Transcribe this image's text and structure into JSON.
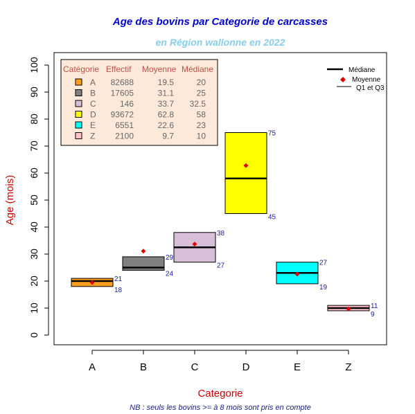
{
  "chart_data": {
    "type": "boxplot",
    "title": "Age des bovins par Categorie de carcasses",
    "subtitle": "en Région wallonne en 2022",
    "xlabel": "Categorie",
    "ylabel": "Age (mois)",
    "note": "NB : seuls les bovins >= à 8 mois sont pris en compte",
    "ylim": [
      0,
      100
    ],
    "y_ticks": [
      0,
      10,
      20,
      30,
      40,
      50,
      60,
      70,
      80,
      90,
      100
    ],
    "grid": false,
    "colors": {
      "title": "#0000cc",
      "subtitle": "#87ceeb",
      "axis_label": "#cc0000",
      "note": "#1a237e",
      "value_label": "#1a1aa6",
      "mean_marker": "#e00000",
      "legend_bg": "#fde9d9",
      "legend_header": "#c0504d",
      "legend_text": "#666666"
    },
    "categories": [
      "A",
      "B",
      "C",
      "D",
      "E",
      "Z"
    ],
    "boxes": [
      {
        "category": "A",
        "effectif": "82688",
        "moyenne": "19.5",
        "mediane": "20",
        "q1": 18,
        "q3": 21,
        "mean": 19.5,
        "median": 20,
        "color": "#ff9f1c"
      },
      {
        "category": "B",
        "effectif": "17605",
        "moyenne": "31.1",
        "mediane": "25",
        "q1": 24,
        "q3": 29,
        "mean": 31.1,
        "median": 25,
        "color": "#808080"
      },
      {
        "category": "C",
        "effectif": "146",
        "moyenne": "33.7",
        "mediane": "32.5",
        "q1": 27,
        "q3": 38,
        "mean": 33.7,
        "median": 32.5,
        "color": "#d8bfd8"
      },
      {
        "category": "D",
        "effectif": "93672",
        "moyenne": "62.8",
        "mediane": "58",
        "q1": 45,
        "q3": 75,
        "mean": 62.8,
        "median": 58,
        "color": "#ffff00"
      },
      {
        "category": "E",
        "effectif": "6551",
        "moyenne": "22.6",
        "mediane": "23",
        "q1": 19,
        "q3": 27,
        "mean": 22.6,
        "median": 23,
        "color": "#00ffff"
      },
      {
        "category": "Z",
        "effectif": "2100",
        "moyenne": "9.7",
        "mediane": "10",
        "q1": 9,
        "q3": 11,
        "mean": 9.7,
        "median": 10,
        "color": "#ffc0cb"
      }
    ],
    "table_headers": [
      "Catégorie",
      "Effectif",
      "Moyenne",
      "Médiane"
    ],
    "legend": {
      "position": "top-right",
      "items": [
        "Médiane",
        "Moyenne",
        "Q1 et Q3"
      ]
    }
  }
}
